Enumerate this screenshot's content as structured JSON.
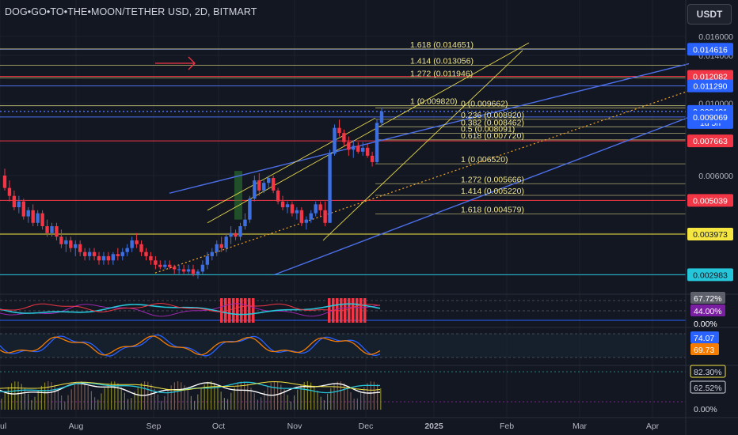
{
  "header": {
    "title": "DOG•GO•TO•THE•MOON/TETHER USD, 2D, BITMART",
    "currency_button": "USDT"
  },
  "colors": {
    "background": "#131722",
    "bull": "#3d6fe0",
    "bear": "#f23645",
    "fib_line": "#f0e68c",
    "channel": "#4c6fe8",
    "grid": "#1e222d",
    "axis_text": "#b2b5be"
  },
  "chart_data": {
    "type": "candlestick",
    "y_axis": {
      "scale": "log",
      "range": [
        0.0026,
        0.0175
      ],
      "ticks": [
        0.016,
        0.014,
        0.01,
        0.006,
        0.004,
        0.003
      ]
    },
    "x_axis": {
      "ticks": [
        "Jul",
        "Aug",
        "Sep",
        "Oct",
        "Nov",
        "Dec",
        "2025",
        "Feb",
        "Mar",
        "Apr"
      ]
    },
    "price_labels": [
      {
        "value": "0.014616",
        "bg": "#2962ff"
      },
      {
        "value": "0.012082",
        "bg": "#f23645"
      },
      {
        "value": "0.011290",
        "bg": "#2962ff"
      },
      {
        "value": "0.009431",
        "bg": "#2962ff",
        "sub": "1d 5h"
      },
      {
        "value": "0.009069",
        "bg": "#2962ff"
      },
      {
        "value": "0.007663",
        "bg": "#f23645"
      },
      {
        "value": "0.005039",
        "bg": "#f23645"
      },
      {
        "value": "0.003973",
        "bg": "#f5e642",
        "dark_text": true
      },
      {
        "value": "0.002983",
        "bg": "#26c6da",
        "dark_text": true
      }
    ],
    "horizontal_levels": [
      {
        "price": 0.014616,
        "color": "#4c6fe8"
      },
      {
        "price": 0.012082,
        "color": "#f23645"
      },
      {
        "price": 0.01129,
        "color": "#4c6fe8"
      },
      {
        "price": 0.009431,
        "color": "#4c6fe8",
        "dotted": true
      },
      {
        "price": 0.009069,
        "color": "#4c6fe8"
      },
      {
        "price": 0.007663,
        "color": "#f23645"
      },
      {
        "price": 0.005039,
        "color": "#f23645"
      },
      {
        "price": 0.003973,
        "color": "#f5e642"
      },
      {
        "price": 0.002983,
        "color": "#26c6da"
      }
    ],
    "fib_extension_labels": [
      {
        "text": "1.618 (0.014651)",
        "price": 0.014651
      },
      {
        "text": "1.414 (0.013056)",
        "price": 0.013056
      },
      {
        "text": "1.272 (0.011946)",
        "price": 0.011946
      },
      {
        "text": "1 (0.009820)",
        "price": 0.00982
      }
    ],
    "fib_retracement_labels": [
      {
        "text": "0 (0.009662)",
        "price": 0.009662
      },
      {
        "text": "0.236 (0.008920)",
        "price": 0.00892
      },
      {
        "text": "0.382 (0.008462)",
        "price": 0.008462
      },
      {
        "text": "0.5 (0.008091)",
        "price": 0.008091
      },
      {
        "text": "0.618 (0.007720)",
        "price": 0.00772
      },
      {
        "text": "1 (0.006520)",
        "price": 0.00652
      },
      {
        "text": "1.272 (0.005666)",
        "price": 0.005666
      },
      {
        "text": "1.414 (0.005220)",
        "price": 0.00522
      },
      {
        "text": "1.618 (0.004579)",
        "price": 0.004579
      }
    ],
    "candles": [
      [
        0.006,
        0.0063,
        0.0054,
        0.0055
      ],
      [
        0.0055,
        0.0058,
        0.005,
        0.0052
      ],
      [
        0.0052,
        0.0054,
        0.0047,
        0.0048
      ],
      [
        0.0048,
        0.0052,
        0.0046,
        0.005
      ],
      [
        0.005,
        0.0051,
        0.0044,
        0.0045
      ],
      [
        0.0045,
        0.0048,
        0.0043,
        0.0047
      ],
      [
        0.0047,
        0.0049,
        0.0042,
        0.0043
      ],
      [
        0.0043,
        0.0047,
        0.0042,
        0.0046
      ],
      [
        0.0046,
        0.0047,
        0.0041,
        0.0042
      ],
      [
        0.0042,
        0.0044,
        0.0039,
        0.004
      ],
      [
        0.004,
        0.0043,
        0.0039,
        0.0042
      ],
      [
        0.0042,
        0.0043,
        0.0038,
        0.0039
      ],
      [
        0.0039,
        0.0041,
        0.0036,
        0.0037
      ],
      [
        0.0037,
        0.0039,
        0.0035,
        0.0038
      ],
      [
        0.0038,
        0.0039,
        0.0035,
        0.0036
      ],
      [
        0.0036,
        0.0038,
        0.0034,
        0.0037
      ],
      [
        0.0037,
        0.0038,
        0.0034,
        0.0035
      ],
      [
        0.0035,
        0.0036,
        0.0033,
        0.0034
      ],
      [
        0.0034,
        0.0036,
        0.0033,
        0.0035
      ],
      [
        0.0035,
        0.0036,
        0.0033,
        0.0034
      ],
      [
        0.0034,
        0.0035,
        0.0032,
        0.0033
      ],
      [
        0.0033,
        0.0035,
        0.0032,
        0.0034
      ],
      [
        0.0034,
        0.0035,
        0.0032,
        0.0033
      ],
      [
        0.0033,
        0.0035,
        0.0032,
        0.00345
      ],
      [
        0.00345,
        0.0036,
        0.0033,
        0.0034
      ],
      [
        0.0034,
        0.0036,
        0.0033,
        0.0035
      ],
      [
        0.0035,
        0.0037,
        0.0034,
        0.0036
      ],
      [
        0.0036,
        0.0039,
        0.0035,
        0.0038
      ],
      [
        0.0038,
        0.004,
        0.0036,
        0.0037
      ],
      [
        0.0037,
        0.0038,
        0.0034,
        0.0035
      ],
      [
        0.0035,
        0.0036,
        0.0033,
        0.0034
      ],
      [
        0.0034,
        0.0035,
        0.0032,
        0.0033
      ],
      [
        0.0033,
        0.0034,
        0.0031,
        0.0032
      ],
      [
        0.0032,
        0.0033,
        0.0031,
        0.00315
      ],
      [
        0.00315,
        0.0033,
        0.0031,
        0.0032
      ],
      [
        0.0032,
        0.0033,
        0.0031,
        0.00315
      ],
      [
        0.00315,
        0.0032,
        0.003,
        0.0031
      ],
      [
        0.0031,
        0.0032,
        0.003,
        0.0031
      ],
      [
        0.0031,
        0.0032,
        0.003,
        0.00305
      ],
      [
        0.00305,
        0.0032,
        0.003,
        0.0031
      ],
      [
        0.0031,
        0.0032,
        0.00295,
        0.003
      ],
      [
        0.003,
        0.0031,
        0.0029,
        0.00305
      ],
      [
        0.00305,
        0.0033,
        0.003,
        0.0032
      ],
      [
        0.0032,
        0.0035,
        0.0031,
        0.0034
      ],
      [
        0.0034,
        0.0036,
        0.0033,
        0.0035
      ],
      [
        0.0035,
        0.0038,
        0.0034,
        0.0037
      ],
      [
        0.0037,
        0.0039,
        0.0035,
        0.0036
      ],
      [
        0.0036,
        0.004,
        0.0035,
        0.0039
      ],
      [
        0.0039,
        0.0042,
        0.0037,
        0.004
      ],
      [
        0.004,
        0.0041,
        0.0038,
        0.0039
      ],
      [
        0.0039,
        0.0043,
        0.0038,
        0.0042
      ],
      [
        0.0042,
        0.0046,
        0.0041,
        0.0044
      ],
      [
        0.0044,
        0.0052,
        0.0043,
        0.0051
      ],
      [
        0.0051,
        0.006,
        0.005,
        0.0058
      ],
      [
        0.0058,
        0.0061,
        0.0052,
        0.0054
      ],
      [
        0.0054,
        0.0058,
        0.0053,
        0.0057
      ],
      [
        0.0057,
        0.006,
        0.0055,
        0.0059
      ],
      [
        0.0059,
        0.006,
        0.0053,
        0.0054
      ],
      [
        0.0054,
        0.0055,
        0.0049,
        0.005
      ],
      [
        0.005,
        0.0052,
        0.0047,
        0.0048
      ],
      [
        0.0048,
        0.005,
        0.0046,
        0.0049
      ],
      [
        0.0049,
        0.005,
        0.0045,
        0.0046
      ],
      [
        0.0046,
        0.0048,
        0.0044,
        0.0047
      ],
      [
        0.0047,
        0.0048,
        0.0042,
        0.0043
      ],
      [
        0.0043,
        0.0045,
        0.0041,
        0.0044
      ],
      [
        0.0044,
        0.0047,
        0.0043,
        0.0046
      ],
      [
        0.0046,
        0.005,
        0.0045,
        0.0049
      ],
      [
        0.0049,
        0.005,
        0.0045,
        0.0047
      ],
      [
        0.0047,
        0.005,
        0.0042,
        0.0043
      ],
      [
        0.0043,
        0.0072,
        0.0043,
        0.007
      ],
      [
        0.007,
        0.0086,
        0.0069,
        0.0084
      ],
      [
        0.0084,
        0.0089,
        0.0079,
        0.0081
      ],
      [
        0.0081,
        0.0083,
        0.0074,
        0.0076
      ],
      [
        0.0076,
        0.0079,
        0.0069,
        0.0072
      ],
      [
        0.0072,
        0.0077,
        0.0068,
        0.0074
      ],
      [
        0.0074,
        0.0076,
        0.007,
        0.0071
      ],
      [
        0.0071,
        0.0076,
        0.0069,
        0.0073
      ],
      [
        0.0073,
        0.0075,
        0.0068,
        0.0069
      ],
      [
        0.0069,
        0.0071,
        0.0064,
        0.0066
      ],
      [
        0.0066,
        0.0089,
        0.0065,
        0.0087
      ],
      [
        0.0087,
        0.0097,
        0.0085,
        0.00943
      ]
    ]
  },
  "indicators": {
    "rsi_panel": {
      "labels": [
        {
          "value": "67.72%",
          "bg": "#5d606b"
        },
        {
          "value": "44.00%",
          "bg": "#7b1fa2"
        },
        {
          "value": "0.00%",
          "bg": null
        }
      ]
    },
    "stoch_panel": {
      "labels": [
        {
          "value": "74.07",
          "bg": "#2962ff"
        },
        {
          "value": "69.73",
          "bg": "#f57c00"
        }
      ]
    },
    "momentum_panel": {
      "labels": [
        {
          "value": "82.30%",
          "bg": null,
          "border": "#f5e642"
        },
        {
          "value": "62.52%",
          "bg": null,
          "border": "#d1d4dc"
        },
        {
          "value": "0.00%",
          "bg": null
        }
      ]
    }
  }
}
